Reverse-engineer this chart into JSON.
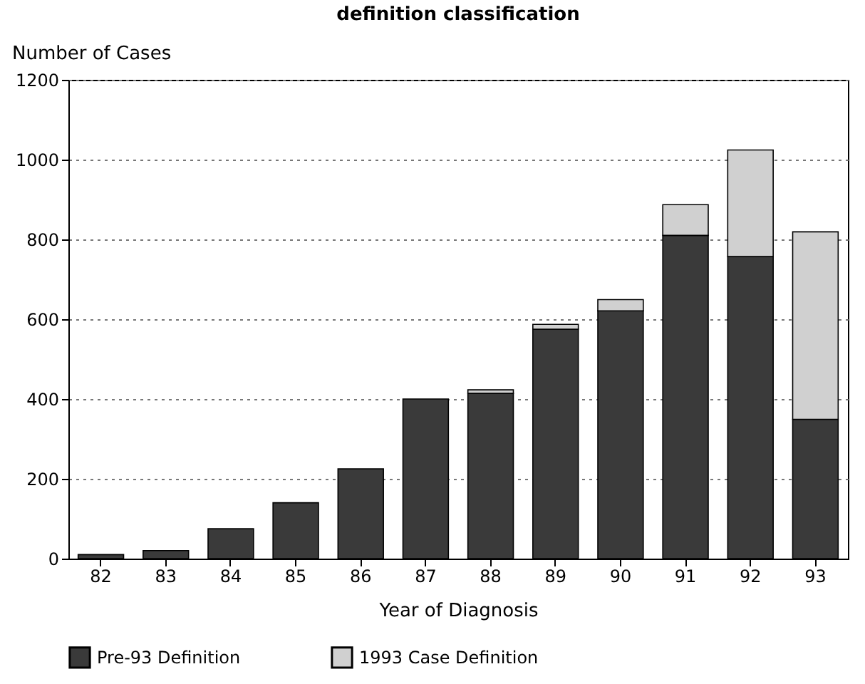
{
  "chart_data": {
    "type": "bar",
    "title": "definition classification",
    "xlabel": "Year of Diagnosis",
    "ylabel": "Number of Cases",
    "categories": [
      "82",
      "83",
      "84",
      "85",
      "86",
      "87",
      "88",
      "89",
      "90",
      "91",
      "92",
      "93"
    ],
    "stacked": true,
    "series": [
      {
        "name": "Pre-93 Definition",
        "color": "#3a3a3a",
        "values": [
          10,
          20,
          75,
          140,
          225,
          400,
          414,
          575,
          621,
          810,
          757,
          349
        ]
      },
      {
        "name": "1993 Case Definition",
        "color": "#d0d0d0",
        "values": [
          null,
          null,
          null,
          null,
          null,
          null,
          9,
          12,
          28,
          77,
          267,
          470
        ]
      }
    ],
    "ylim": [
      0,
      1200
    ],
    "yticks": [
      0,
      200,
      400,
      600,
      800,
      1000,
      1200
    ],
    "grid": "y",
    "legend": "bottom"
  }
}
